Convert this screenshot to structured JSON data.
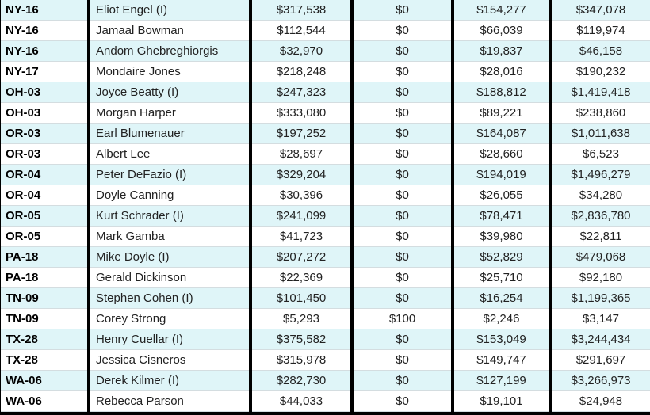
{
  "rows": [
    [
      "NY-16",
      "Eliot Engel (I)",
      "$317,538",
      "$0",
      "$154,277",
      "$347,078"
    ],
    [
      "NY-16",
      "Jamaal Bowman",
      "$112,544",
      "$0",
      "$66,039",
      "$119,974"
    ],
    [
      "NY-16",
      "Andom Ghebreghiorgis",
      "$32,970",
      "$0",
      "$19,837",
      "$46,158"
    ],
    [
      "NY-17",
      "Mondaire Jones",
      "$218,248",
      "$0",
      "$28,016",
      "$190,232"
    ],
    [
      "OH-03",
      "Joyce Beatty (I)",
      "$247,323",
      "$0",
      "$188,812",
      "$1,419,418"
    ],
    [
      "OH-03",
      "Morgan Harper",
      "$333,080",
      "$0",
      "$89,221",
      "$238,860"
    ],
    [
      "OR-03",
      "Earl Blumenauer",
      "$197,252",
      "$0",
      "$164,087",
      "$1,011,638"
    ],
    [
      "OR-03",
      "Albert Lee",
      "$28,697",
      "$0",
      "$28,660",
      "$6,523"
    ],
    [
      "OR-04",
      "Peter DeFazio (I)",
      "$329,204",
      "$0",
      "$194,019",
      "$1,496,279"
    ],
    [
      "OR-04",
      "Doyle Canning",
      "$30,396",
      "$0",
      "$26,055",
      "$34,280"
    ],
    [
      "OR-05",
      "Kurt Schrader (I)",
      "$241,099",
      "$0",
      "$78,471",
      "$2,836,780"
    ],
    [
      "OR-05",
      "Mark Gamba",
      "$41,723",
      "$0",
      "$39,980",
      "$22,811"
    ],
    [
      "PA-18",
      "Mike Doyle (I)",
      "$207,272",
      "$0",
      "$52,829",
      "$479,068"
    ],
    [
      "PA-18",
      "Gerald Dickinson",
      "$22,369",
      "$0",
      "$25,710",
      "$92,180"
    ],
    [
      "TN-09",
      "Stephen Cohen (I)",
      "$101,450",
      "$0",
      "$16,254",
      "$1,199,365"
    ],
    [
      "TN-09",
      "Corey Strong",
      "$5,293",
      "$100",
      "$2,246",
      "$3,147"
    ],
    [
      "TX-28",
      "Henry Cuellar (I)",
      "$375,582",
      "$0",
      "$153,049",
      "$3,244,434"
    ],
    [
      "TX-28",
      "Jessica Cisneros",
      "$315,978",
      "$0",
      "$149,747",
      "$291,697"
    ],
    [
      "WA-06",
      "Derek Kilmer (I)",
      "$282,730",
      "$0",
      "$127,199",
      "$3,266,973"
    ],
    [
      "WA-06",
      "Rebecca Parson",
      "$44,033",
      "$0",
      "$19,101",
      "$24,948"
    ]
  ],
  "colors": {
    "alt_row": "#dff5f8",
    "border": "#000000"
  }
}
